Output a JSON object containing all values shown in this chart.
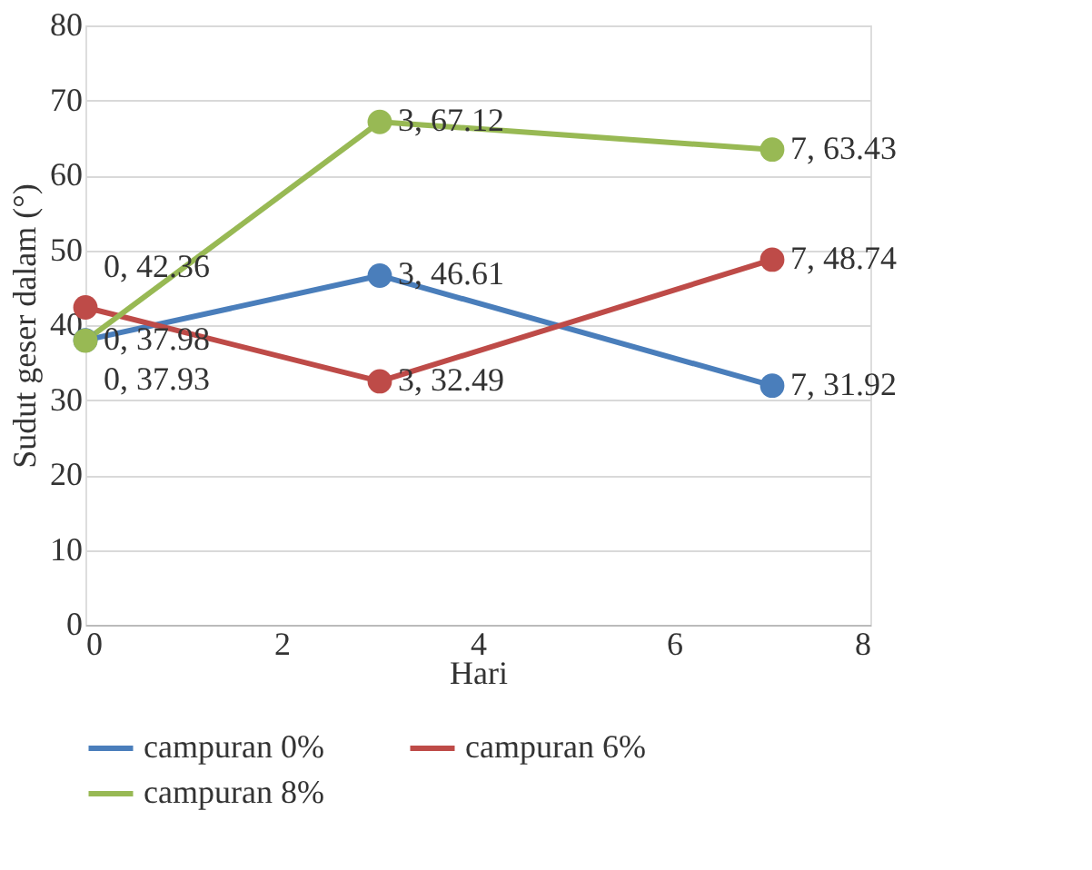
{
  "chart_data": {
    "type": "line",
    "xlabel": "Hari",
    "ylabel": "Sudut geser dalam (°)",
    "x": [
      0,
      3,
      7
    ],
    "series": [
      {
        "name": "campuran 0%",
        "color": "#4a7ebb",
        "values": [
          37.98,
          46.61,
          31.92
        ],
        "value_labels": [
          "0, 37.98",
          "3, 46.61",
          "7, 31.92"
        ]
      },
      {
        "name": "campuran 6%",
        "color": "#be4b48",
        "values": [
          42.36,
          32.49,
          48.74
        ],
        "value_labels": [
          "0, 42.36",
          "3, 32.49",
          "7, 48.74"
        ]
      },
      {
        "name": "campuran 8%",
        "color": "#98b954",
        "values": [
          37.93,
          67.12,
          63.43
        ],
        "value_labels": [
          "0, 37.93",
          "3, 67.12",
          "7, 63.43"
        ]
      }
    ],
    "xlim": [
      0,
      8
    ],
    "xticks": [
      0,
      2,
      4,
      6,
      8
    ],
    "ylim": [
      0,
      80
    ],
    "yticks": [
      0,
      10,
      20,
      30,
      40,
      50,
      60,
      70,
      80
    ],
    "grid": "y",
    "legend": "bottom",
    "marker": "circle",
    "line_style": "solid"
  }
}
